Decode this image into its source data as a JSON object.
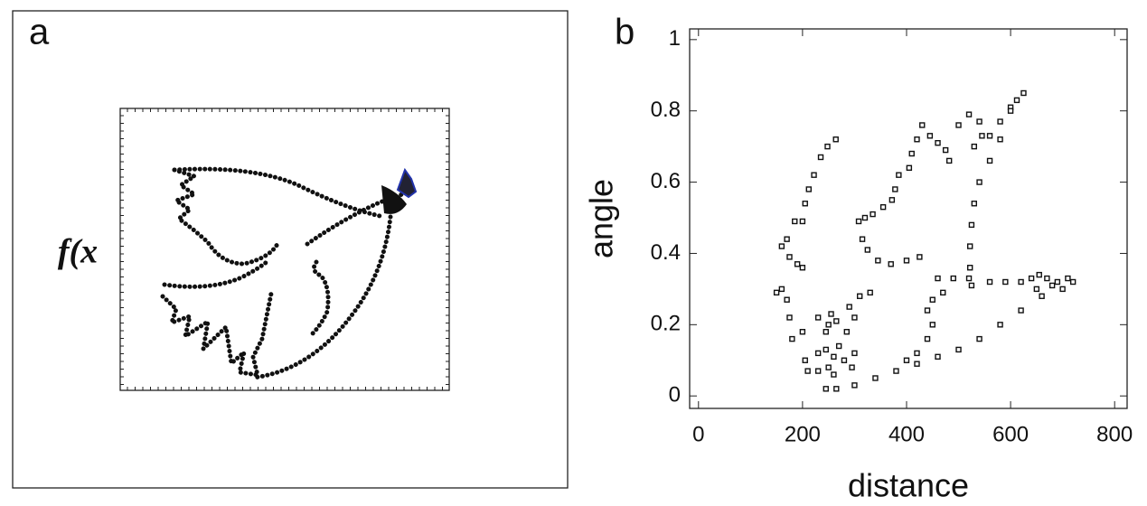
{
  "chart_data": [
    {
      "type": "illustration",
      "panel_label": "a",
      "ylabel": "f(x"
    },
    {
      "type": "scatter",
      "panel_label": "b",
      "xlabel": "distance",
      "ylabel": "angle",
      "color": "#111",
      "xlim": [
        -17,
        824
      ],
      "ylim": [
        -0.035,
        1.03
      ],
      "xticks": [
        0,
        200,
        400,
        600,
        800
      ],
      "yticks": [
        0,
        0.2,
        0.4,
        0.6,
        0.8,
        1
      ],
      "x": [
        264,
        248,
        235,
        222,
        212,
        205,
        200,
        185,
        170,
        160,
        175,
        190,
        200,
        308,
        315,
        325,
        345,
        370,
        400,
        425,
        430,
        420,
        410,
        405,
        385,
        378,
        372,
        355,
        335,
        320,
        445,
        460,
        475,
        482,
        500,
        520,
        540,
        545,
        530,
        560,
        580,
        600,
        612,
        625,
        600,
        580,
        560,
        540,
        530,
        525,
        522,
        522,
        525,
        460,
        490,
        520,
        560,
        590,
        620,
        640,
        655,
        670,
        690,
        710,
        720,
        650,
        680,
        700,
        660,
        620,
        580,
        540,
        500,
        460,
        420,
        380,
        340,
        300,
        265,
        245,
        470,
        450,
        440,
        450,
        440,
        420,
        400,
        150,
        160,
        170,
        175,
        180,
        200,
        230,
        255,
        250,
        245,
        265,
        290,
        310,
        330,
        300,
        285,
        270,
        260,
        250,
        230,
        210,
        205,
        230,
        245,
        260,
        280,
        300,
        295
      ],
      "y": [
        0.72,
        0.7,
        0.67,
        0.62,
        0.58,
        0.54,
        0.49,
        0.49,
        0.44,
        0.42,
        0.39,
        0.37,
        0.36,
        0.49,
        0.44,
        0.41,
        0.38,
        0.37,
        0.38,
        0.39,
        0.76,
        0.72,
        0.68,
        0.64,
        0.62,
        0.58,
        0.55,
        0.53,
        0.51,
        0.5,
        0.73,
        0.71,
        0.69,
        0.66,
        0.76,
        0.79,
        0.77,
        0.73,
        0.7,
        0.73,
        0.77,
        0.81,
        0.83,
        0.85,
        0.8,
        0.72,
        0.66,
        0.6,
        0.54,
        0.48,
        0.42,
        0.36,
        0.31,
        0.33,
        0.33,
        0.33,
        0.32,
        0.32,
        0.32,
        0.33,
        0.34,
        0.33,
        0.32,
        0.33,
        0.32,
        0.3,
        0.31,
        0.3,
        0.28,
        0.24,
        0.2,
        0.16,
        0.13,
        0.11,
        0.09,
        0.07,
        0.05,
        0.03,
        0.02,
        0.02,
        0.29,
        0.27,
        0.24,
        0.2,
        0.16,
        0.12,
        0.1,
        0.29,
        0.3,
        0.27,
        0.22,
        0.16,
        0.18,
        0.22,
        0.23,
        0.2,
        0.18,
        0.21,
        0.25,
        0.28,
        0.29,
        0.22,
        0.18,
        0.14,
        0.11,
        0.08,
        0.07,
        0.07,
        0.1,
        0.12,
        0.13,
        0.06,
        0.1,
        0.12,
        0.08
      ]
    }
  ]
}
